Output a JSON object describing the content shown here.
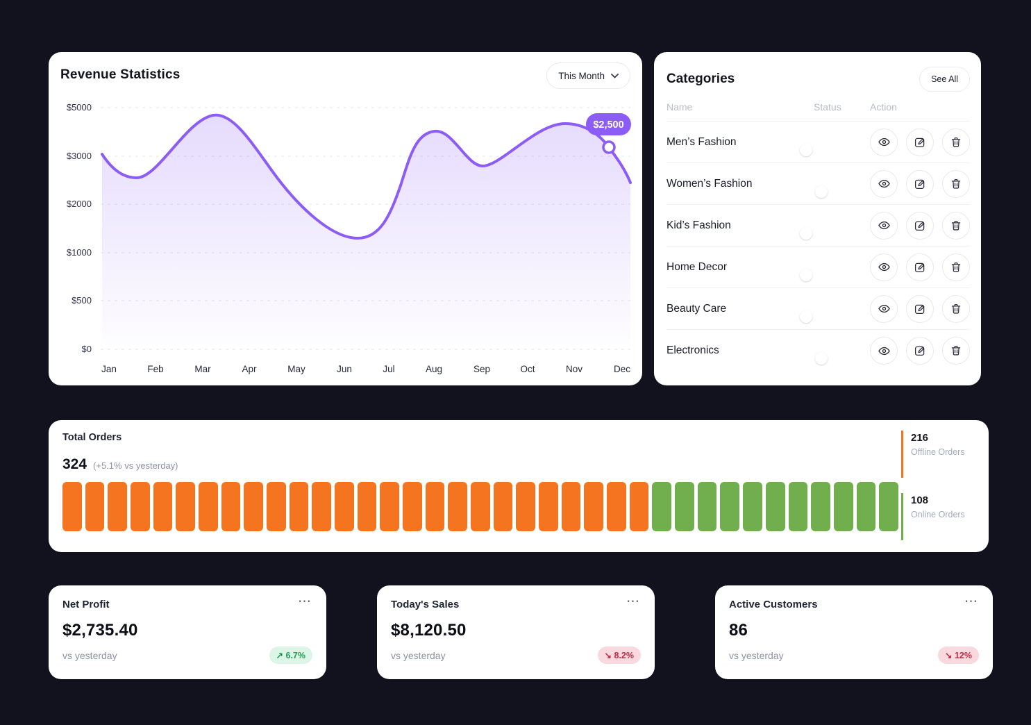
{
  "revenue": {
    "title": "Revenue Statistics",
    "filter_label": "This Month",
    "tooltip": "$2,500",
    "y_ticks": [
      "$5000",
      "$3000",
      "$2000",
      "$1000",
      "$500",
      "$0"
    ],
    "months": [
      "Jan",
      "Feb",
      "Mar",
      "Apr",
      "May",
      "Jun",
      "Jul",
      "Aug",
      "Sep",
      "Oct",
      "Nov",
      "Dec"
    ]
  },
  "chart_data": [
    {
      "type": "area",
      "title": "Revenue Statistics",
      "x": [
        "Jan",
        "Feb",
        "Mar",
        "Apr",
        "May",
        "Jun",
        "Jul",
        "Aug",
        "Sep",
        "Oct",
        "Nov",
        "Dec"
      ],
      "values": [
        3050,
        2550,
        4600,
        2950,
        2350,
        1400,
        1500,
        4050,
        2800,
        3300,
        4350,
        2500
      ],
      "annotation": {
        "label": "$2,500",
        "value": 2500,
        "near": "Dec"
      },
      "y_tick_labels": [
        "$0",
        "$500",
        "$1000",
        "$2000",
        "$3000",
        "$5000"
      ],
      "ylim": [
        0,
        5000
      ],
      "grid": "dashed horizontal",
      "line_color": "#8b5cf6",
      "axis_note": "y ticks evenly spaced but non-linear values"
    },
    {
      "type": "bar",
      "title": "Total Orders segmented bar",
      "series": [
        {
          "name": "Offline Orders",
          "value": 216,
          "segments": 26,
          "color": "#f4741f"
        },
        {
          "name": "Online Orders",
          "value": 108,
          "segments": 11,
          "color": "#71ae4e"
        }
      ],
      "total": 324
    }
  ],
  "categories": {
    "title": "Categories",
    "see_all": "See All",
    "columns": [
      "Name",
      "Status",
      "Action"
    ],
    "rows": [
      {
        "name": "Men’s Fashion",
        "on": true
      },
      {
        "name": "Women’s Fashion",
        "on": false
      },
      {
        "name": "Kid’s Fashion",
        "on": true
      },
      {
        "name": "Home Decor",
        "on": true
      },
      {
        "name": "Beauty Care",
        "on": true
      },
      {
        "name": "Electronics",
        "on": false
      }
    ],
    "row_actions": [
      "view-icon",
      "edit-icon",
      "delete-icon"
    ]
  },
  "orders": {
    "title": "Total Orders",
    "value": "324",
    "delta": "(+5.1% vs yesterday)",
    "segments": {
      "offline": 26,
      "online": 11
    },
    "offline": {
      "value": "216",
      "label": "Offline Orders"
    },
    "online": {
      "value": "108",
      "label": "Online Orders"
    }
  },
  "stats": [
    {
      "title": "Net Profit",
      "menu": "⋯",
      "value": "$2,735.40",
      "sub": "vs yesterday",
      "badge": "↗ 6.7%",
      "dir": "up"
    },
    {
      "title": "Today's Sales",
      "menu": "⋯",
      "value": "$8,120.50",
      "sub": "vs yesterday",
      "badge": "↘ 8.2%",
      "dir": "down"
    },
    {
      "title": "Active Customers",
      "menu": "⋯",
      "value": "86",
      "sub": "vs yesterday",
      "badge": "↘ 12%",
      "dir": "down"
    }
  ],
  "colors": {
    "page_bg": "#12121e",
    "card_bg": "#ffffff",
    "accent_purple": "#8b5cf6",
    "toggle_green": "#27c355",
    "offline_orange": "#f4741f",
    "online_green": "#71ae4e",
    "badge_up": "#1d9e54",
    "badge_down": "#c22a46"
  }
}
